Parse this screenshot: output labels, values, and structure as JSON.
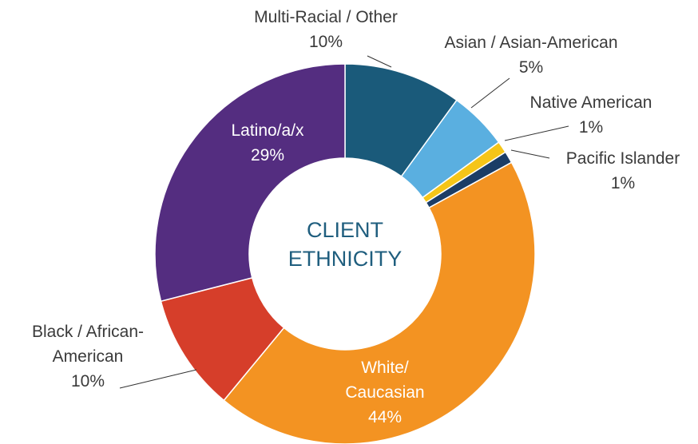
{
  "chart_data": {
    "type": "donut",
    "title": "CLIENT ETHNICITY",
    "categories": [
      "Multi-Racial / Other",
      "Asian / Asian-American",
      "Native American",
      "Pacific Islander",
      "White/ Caucasian",
      "Black / African-American",
      "Latino/a/x"
    ],
    "values": [
      10,
      5,
      1,
      1,
      44,
      10,
      29
    ],
    "value_labels": [
      "10%",
      "5%",
      "1%",
      "1%",
      "44%",
      "10%",
      "29%"
    ],
    "colors": [
      "#1a5a7a",
      "#5aafe0",
      "#f5c518",
      "#1b3d66",
      "#f39322",
      "#d63e2a",
      "#542d80"
    ]
  }
}
